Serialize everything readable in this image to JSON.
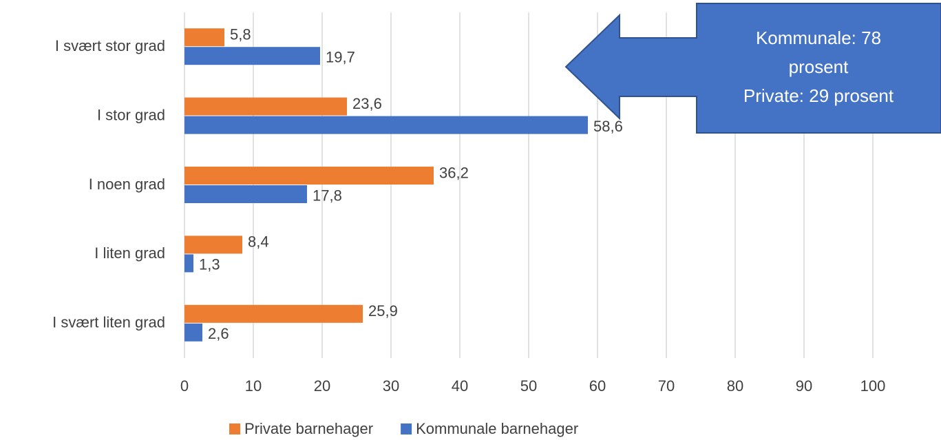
{
  "chart_data": {
    "type": "barh",
    "categories": [
      "I svært stor grad",
      "I stor grad",
      "I noen grad",
      "I liten grad",
      "I svært liten grad"
    ],
    "series": [
      {
        "name": "Private barnehager",
        "color": "#ED7D31",
        "values": [
          5.8,
          23.6,
          36.2,
          8.4,
          25.9
        ],
        "value_labels": [
          "5,8",
          "23,6",
          "36,2",
          "8,4",
          "25,9"
        ]
      },
      {
        "name": "Kommunale barnehager",
        "color": "#4472C4",
        "values": [
          19.7,
          58.6,
          17.8,
          1.3,
          2.6
        ],
        "value_labels": [
          "19,7",
          "58,6",
          "17,8",
          "1,3",
          "2,6"
        ]
      }
    ],
    "xlim": [
      0,
      100
    ],
    "xticks": [
      0,
      10,
      20,
      30,
      40,
      50,
      60,
      70,
      80,
      90,
      100
    ],
    "grid": true,
    "legend": "bottom",
    "annotation": [
      "Kommunale: 78",
      "prosent",
      "Private: 29 prosent"
    ]
  }
}
